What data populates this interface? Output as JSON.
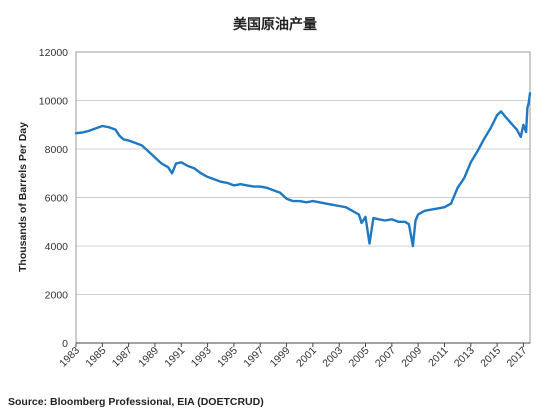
{
  "chart_data": {
    "type": "line",
    "title": "美国原油产量",
    "xlabel": "",
    "ylabel": "Thousands of Barrels Per Day",
    "xlim": [
      1983,
      2017.5
    ],
    "ylim": [
      0,
      12000
    ],
    "y_ticks": [
      0,
      2000,
      4000,
      6000,
      8000,
      10000,
      12000
    ],
    "x_ticks": [
      "1983",
      "1985",
      "1987",
      "1989",
      "1991",
      "1993",
      "1995",
      "1997",
      "1999",
      "2001",
      "2003",
      "2005",
      "2007",
      "2009",
      "2011",
      "2013",
      "2015",
      "2017"
    ],
    "grid": "horizontal",
    "legend": "none",
    "series": [
      {
        "color": "#1f78c1",
        "x": [
          1983.0,
          1983.5,
          1984.0,
          1984.5,
          1985.0,
          1985.5,
          1986.0,
          1986.3,
          1986.6,
          1987.0,
          1987.5,
          1988.0,
          1988.5,
          1989.0,
          1989.5,
          1990.0,
          1990.3,
          1990.6,
          1991.0,
          1991.5,
          1992.0,
          1992.5,
          1993.0,
          1993.5,
          1994.0,
          1994.5,
          1995.0,
          1995.5,
          1996.0,
          1996.5,
          1997.0,
          1997.5,
          1998.0,
          1998.5,
          1999.0,
          1999.5,
          2000.0,
          2000.5,
          2001.0,
          2001.5,
          2002.0,
          2002.5,
          2003.0,
          2003.5,
          2004.0,
          2004.5,
          2004.7,
          2005.0,
          2005.3,
          2005.6,
          2006.0,
          2006.5,
          2007.0,
          2007.5,
          2008.0,
          2008.3,
          2008.6,
          2008.8,
          2009.0,
          2009.5,
          2010.0,
          2010.5,
          2011.0,
          2011.5,
          2012.0,
          2012.5,
          2013.0,
          2013.5,
          2014.0,
          2014.5,
          2015.0,
          2015.3,
          2015.6,
          2016.0,
          2016.5,
          2016.8,
          2017.0,
          2017.2,
          2017.3,
          2017.4,
          2017.5
        ],
        "values": [
          8650,
          8680,
          8750,
          8850,
          8950,
          8900,
          8800,
          8550,
          8400,
          8350,
          8250,
          8150,
          7900,
          7650,
          7400,
          7250,
          7000,
          7400,
          7450,
          7300,
          7200,
          7000,
          6850,
          6750,
          6650,
          6600,
          6500,
          6550,
          6500,
          6450,
          6450,
          6400,
          6300,
          6200,
          5950,
          5850,
          5850,
          5800,
          5850,
          5800,
          5750,
          5700,
          5650,
          5600,
          5450,
          5300,
          4950,
          5200,
          4100,
          5150,
          5100,
          5050,
          5100,
          5000,
          5000,
          4900,
          4000,
          5050,
          5300,
          5450,
          5500,
          5550,
          5600,
          5750,
          6400,
          6800,
          7450,
          7900,
          8400,
          8850,
          9400,
          9550,
          9350,
          9100,
          8800,
          8500,
          9000,
          8700,
          9700,
          9900,
          10300
        ]
      }
    ]
  },
  "source": "Source: Bloomberg Professional, EIA (DOETCRUD)"
}
